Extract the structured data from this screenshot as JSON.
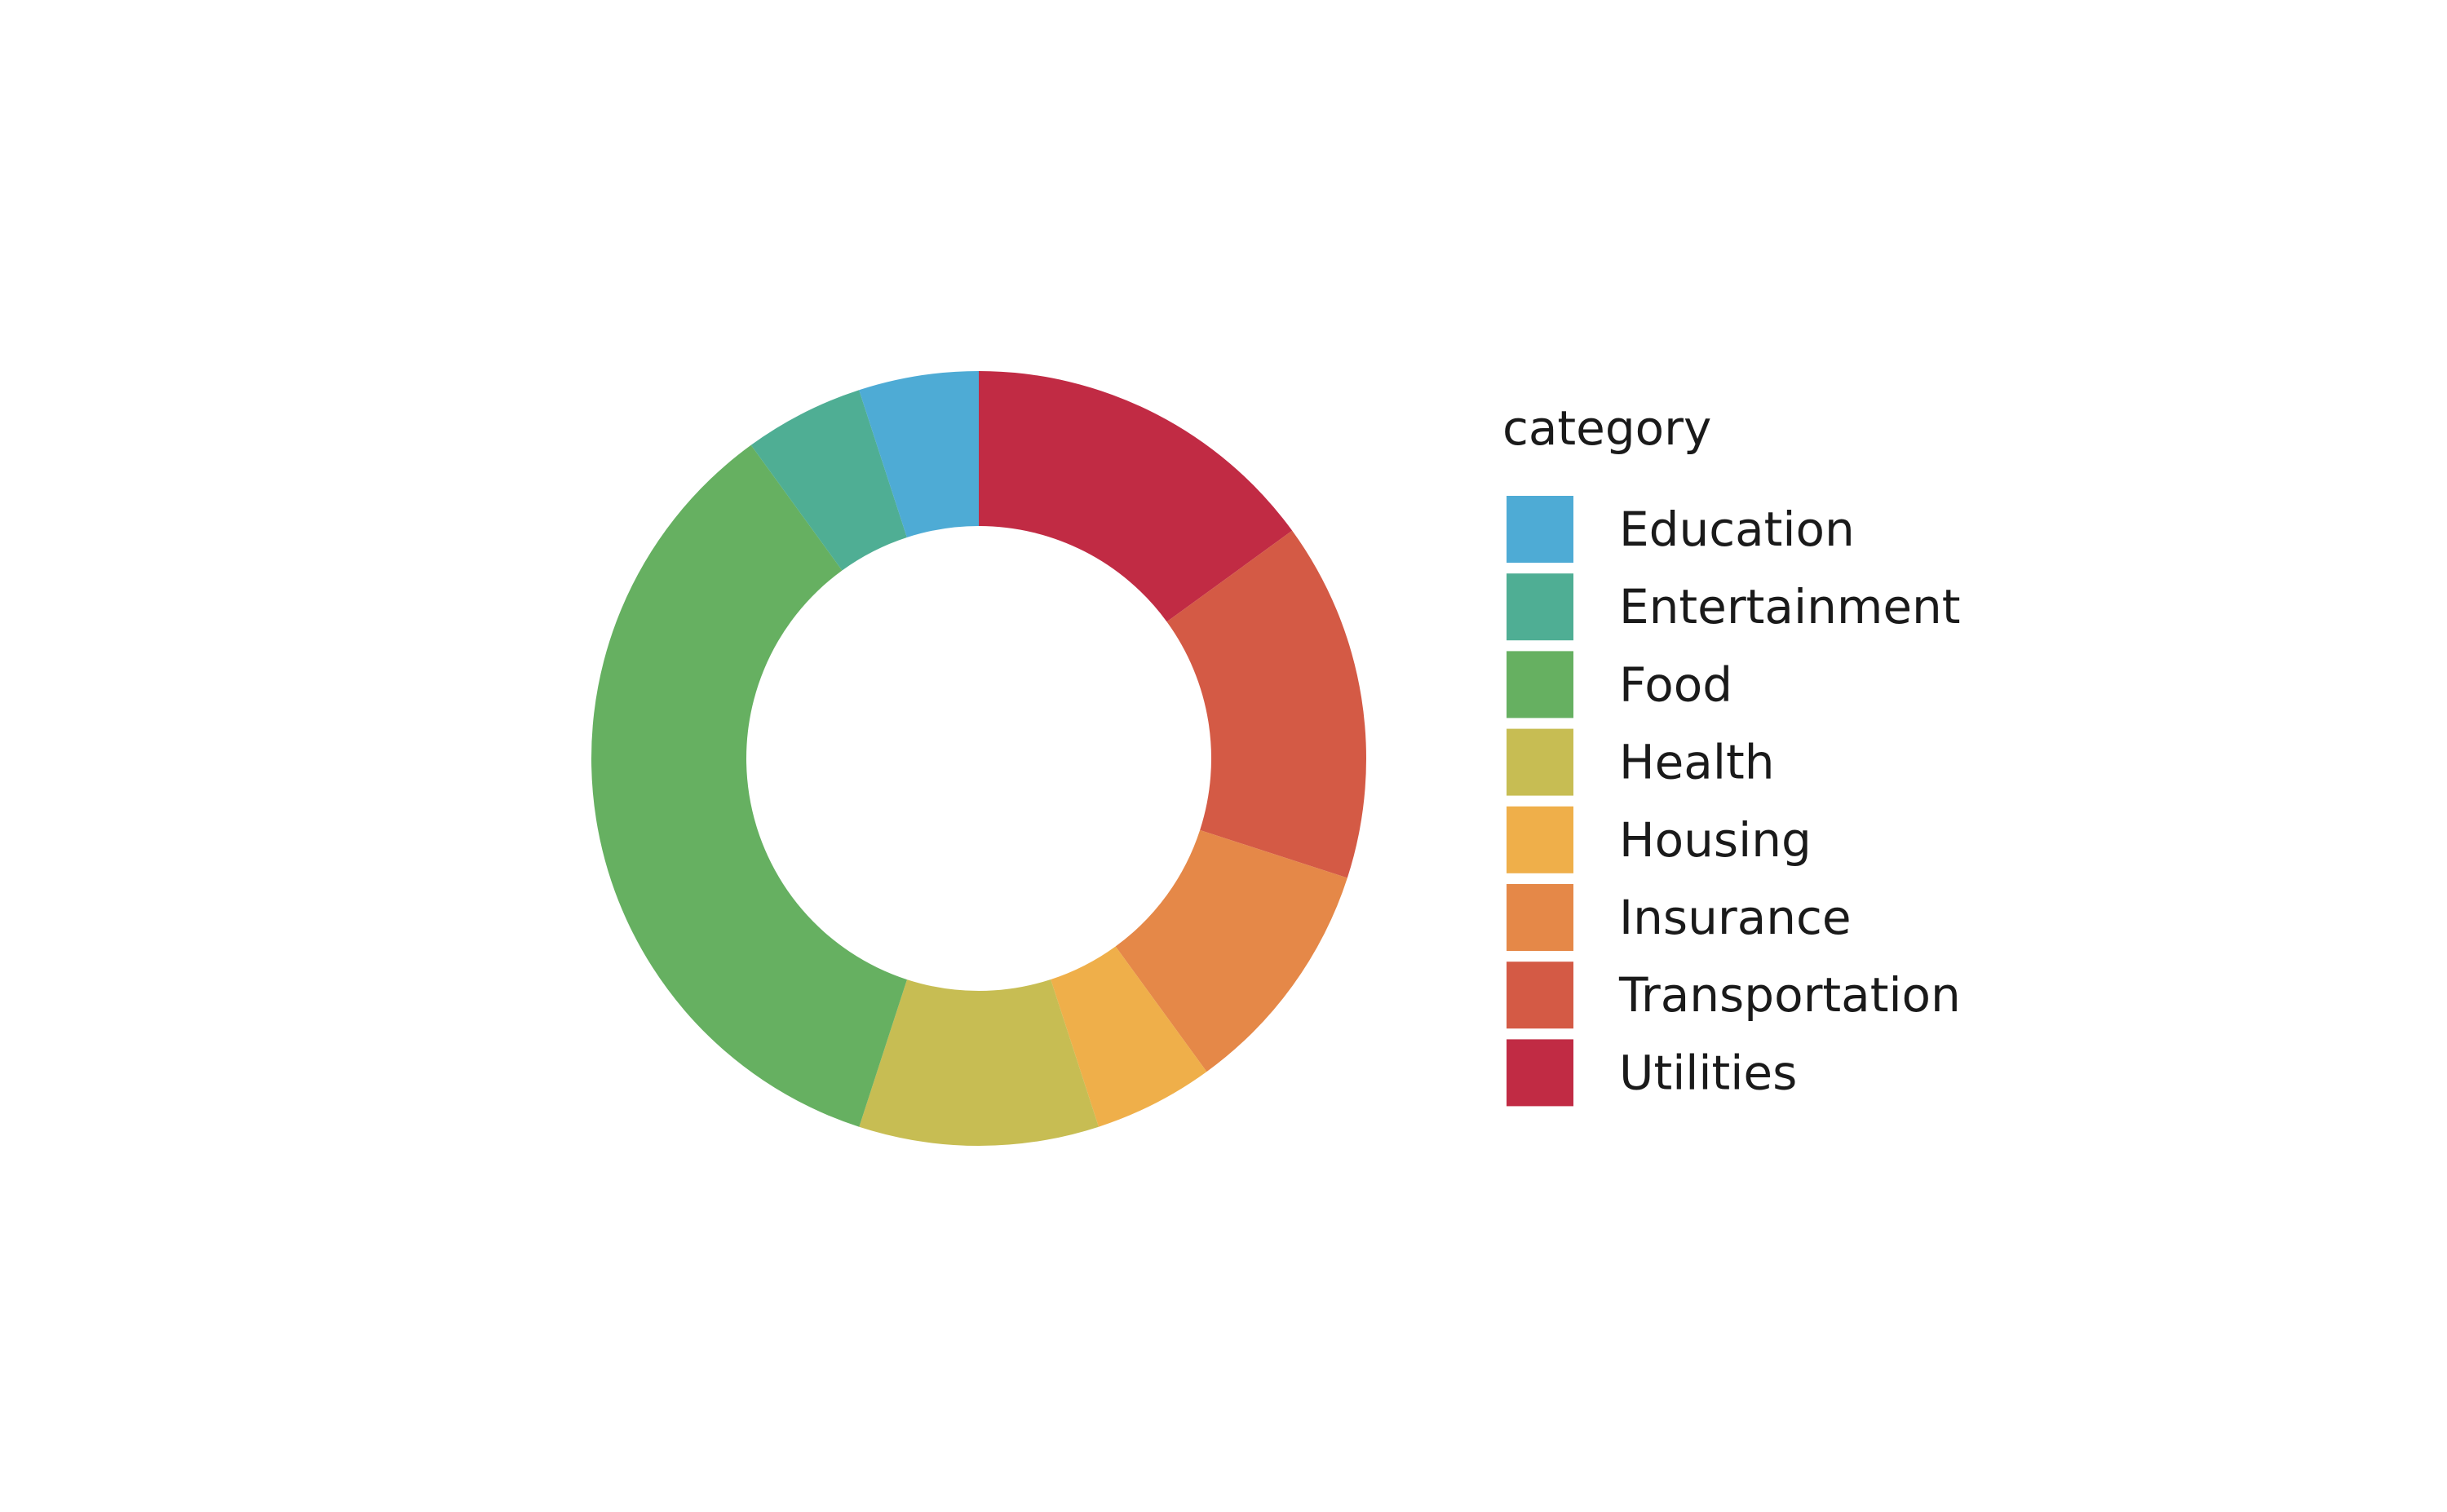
{
  "chart_data": {
    "type": "pie",
    "donut": true,
    "title": "",
    "legend": {
      "title": "category",
      "position": "right"
    },
    "slices": [
      {
        "label": "Utilities",
        "value": 0.1475,
        "color": "#c12b44"
      },
      {
        "label": "Transportation",
        "value": 0.1475,
        "color": "#d45a45"
      },
      {
        "label": "Insurance",
        "value": 0.0984,
        "color": "#e58848"
      },
      {
        "label": "Housing",
        "value": 0.0492,
        "color": "#efaf4a"
      },
      {
        "label": "Health",
        "value": 0.0984,
        "color": "#c7bd53"
      },
      {
        "label": "Food",
        "value": 0.3443,
        "color": "#66b061"
      },
      {
        "label": "Entertainment",
        "value": 0.0492,
        "color": "#4fae94"
      },
      {
        "label": "Education",
        "value": 0.0492,
        "color": "#4eabd5"
      }
    ],
    "legend_order": [
      "Education",
      "Entertainment",
      "Food",
      "Health",
      "Housing",
      "Insurance",
      "Transportation",
      "Utilities"
    ],
    "start_angle": "12 o'clock",
    "direction": "clockwise"
  }
}
